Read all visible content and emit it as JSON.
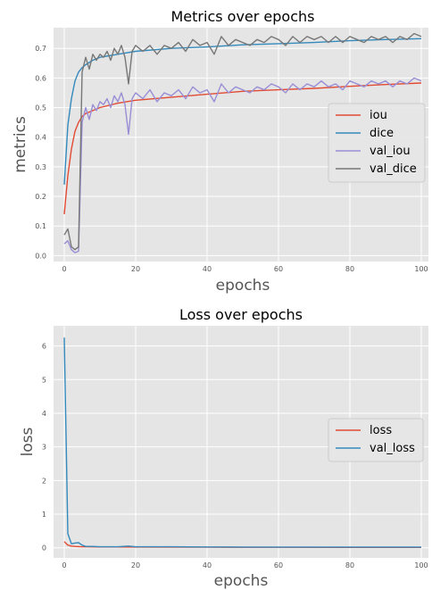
{
  "charts": [
    {
      "type": "line",
      "title": "Metrics over epochs",
      "xlabel": "epochs",
      "ylabel": "metrics",
      "xlim": [
        -3,
        102
      ],
      "ylim": [
        -0.02,
        0.77
      ],
      "xticks": [
        0,
        20,
        40,
        60,
        80,
        100
      ],
      "yticks": [
        0.0,
        0.1,
        0.2,
        0.3,
        0.4,
        0.5,
        0.6,
        0.7
      ],
      "ytick_labels": [
        "0.0",
        "0.1",
        "0.2",
        "0.3",
        "0.4",
        "0.5",
        "0.6",
        "0.7"
      ],
      "grid": true,
      "legend_position": "center-right",
      "series": [
        {
          "name": "iou",
          "color": "#E24A33",
          "x": [
            0,
            1,
            2,
            3,
            4,
            5,
            6,
            8,
            10,
            15,
            20,
            30,
            40,
            50,
            60,
            70,
            80,
            90,
            100
          ],
          "y": [
            0.14,
            0.27,
            0.36,
            0.42,
            0.45,
            0.47,
            0.48,
            0.49,
            0.5,
            0.515,
            0.525,
            0.535,
            0.545,
            0.555,
            0.56,
            0.565,
            0.572,
            0.578,
            0.583
          ]
        },
        {
          "name": "dice",
          "color": "#348ABD",
          "x": [
            0,
            1,
            2,
            3,
            4,
            5,
            6,
            8,
            10,
            15,
            20,
            30,
            40,
            50,
            60,
            70,
            80,
            90,
            100
          ],
          "y": [
            0.24,
            0.44,
            0.53,
            0.59,
            0.62,
            0.635,
            0.645,
            0.66,
            0.67,
            0.68,
            0.69,
            0.7,
            0.705,
            0.712,
            0.716,
            0.72,
            0.726,
            0.73,
            0.733
          ]
        },
        {
          "name": "val_iou",
          "color": "#988ED5",
          "x": [
            0,
            1,
            2,
            3,
            4,
            5,
            6,
            7,
            8,
            9,
            10,
            11,
            12,
            13,
            14,
            15,
            16,
            17,
            18,
            19,
            20,
            22,
            24,
            26,
            28,
            30,
            32,
            34,
            36,
            38,
            40,
            42,
            44,
            46,
            48,
            50,
            52,
            54,
            56,
            58,
            60,
            62,
            64,
            66,
            68,
            70,
            72,
            74,
            76,
            78,
            80,
            82,
            84,
            86,
            88,
            90,
            92,
            94,
            96,
            98,
            100
          ],
          "y": [
            0.04,
            0.05,
            0.02,
            0.01,
            0.015,
            0.45,
            0.5,
            0.46,
            0.51,
            0.49,
            0.52,
            0.51,
            0.53,
            0.5,
            0.54,
            0.52,
            0.55,
            0.51,
            0.41,
            0.53,
            0.55,
            0.53,
            0.56,
            0.52,
            0.55,
            0.54,
            0.56,
            0.53,
            0.57,
            0.55,
            0.56,
            0.52,
            0.58,
            0.55,
            0.57,
            0.56,
            0.55,
            0.57,
            0.56,
            0.58,
            0.57,
            0.55,
            0.58,
            0.56,
            0.58,
            0.57,
            0.59,
            0.57,
            0.58,
            0.56,
            0.59,
            0.58,
            0.57,
            0.59,
            0.58,
            0.59,
            0.57,
            0.59,
            0.58,
            0.6,
            0.59
          ]
        },
        {
          "name": "val_dice",
          "color": "#777777",
          "x": [
            0,
            1,
            2,
            3,
            4,
            5,
            6,
            7,
            8,
            9,
            10,
            11,
            12,
            13,
            14,
            15,
            16,
            17,
            18,
            19,
            20,
            22,
            24,
            26,
            28,
            30,
            32,
            34,
            36,
            38,
            40,
            42,
            44,
            46,
            48,
            50,
            52,
            54,
            56,
            58,
            60,
            62,
            64,
            66,
            68,
            70,
            72,
            74,
            76,
            78,
            80,
            82,
            84,
            86,
            88,
            90,
            92,
            94,
            96,
            98,
            100
          ],
          "y": [
            0.07,
            0.09,
            0.03,
            0.02,
            0.03,
            0.62,
            0.67,
            0.63,
            0.68,
            0.66,
            0.68,
            0.67,
            0.69,
            0.66,
            0.7,
            0.68,
            0.71,
            0.67,
            0.58,
            0.69,
            0.71,
            0.69,
            0.71,
            0.68,
            0.71,
            0.7,
            0.72,
            0.69,
            0.73,
            0.71,
            0.72,
            0.68,
            0.74,
            0.71,
            0.73,
            0.72,
            0.71,
            0.73,
            0.72,
            0.74,
            0.73,
            0.71,
            0.74,
            0.72,
            0.74,
            0.73,
            0.74,
            0.72,
            0.74,
            0.72,
            0.74,
            0.73,
            0.72,
            0.74,
            0.73,
            0.74,
            0.72,
            0.74,
            0.73,
            0.75,
            0.74
          ]
        }
      ]
    },
    {
      "type": "line",
      "title": "Loss over epochs",
      "xlabel": "epochs",
      "ylabel": "loss",
      "xlim": [
        -3,
        102
      ],
      "ylim": [
        -0.3,
        6.6
      ],
      "xticks": [
        0,
        20,
        40,
        60,
        80,
        100
      ],
      "yticks": [
        0,
        1,
        2,
        3,
        4,
        5,
        6
      ],
      "ytick_labels": [
        "0",
        "1",
        "2",
        "3",
        "4",
        "5",
        "6"
      ],
      "grid": true,
      "legend_position": "center-right",
      "series": [
        {
          "name": "loss",
          "color": "#E24A33",
          "x": [
            0,
            1,
            2,
            3,
            4,
            5,
            10,
            20,
            40,
            60,
            80,
            100
          ],
          "y": [
            0.18,
            0.08,
            0.05,
            0.04,
            0.035,
            0.03,
            0.025,
            0.02,
            0.015,
            0.012,
            0.01,
            0.01
          ]
        },
        {
          "name": "val_loss",
          "color": "#348ABD",
          "x": [
            0,
            1,
            2,
            3,
            4,
            5,
            6,
            8,
            10,
            15,
            18,
            20,
            30,
            40,
            50,
            60,
            70,
            80,
            90,
            100
          ],
          "y": [
            6.25,
            0.42,
            0.12,
            0.14,
            0.15,
            0.08,
            0.04,
            0.04,
            0.03,
            0.03,
            0.05,
            0.03,
            0.03,
            0.025,
            0.02,
            0.02,
            0.02,
            0.02,
            0.02,
            0.02
          ]
        }
      ]
    }
  ]
}
